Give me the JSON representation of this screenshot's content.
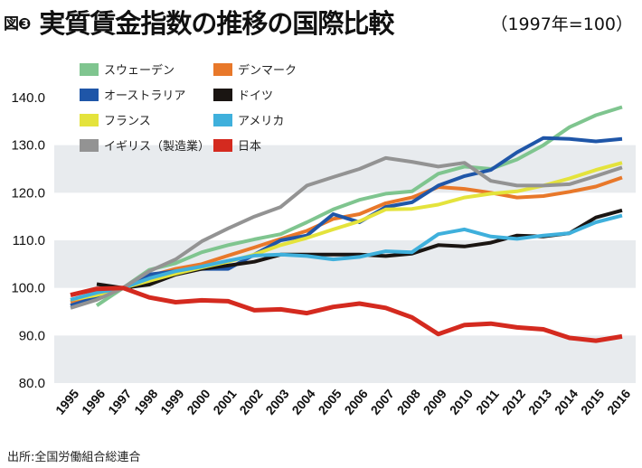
{
  "figure_label": "図❸",
  "title": "実質賃金指数の推移の国際比較",
  "subtitle": "（1997年=100）",
  "source": "出所:全国労働組合総連合",
  "chart_data": {
    "type": "line",
    "title": "実質賃金指数の推移の国際比較",
    "subtitle": "（1997年=100）",
    "xlabel": "",
    "ylabel": "",
    "ylim": [
      80,
      140
    ],
    "yticks": [
      "80.0",
      "90.0",
      "100.0",
      "110.0",
      "120.0",
      "130.0",
      "140.0"
    ],
    "ytick_values": [
      80,
      90,
      100,
      110,
      120,
      130,
      140
    ],
    "grid": "alternating horizontal bands",
    "legend_position": "top-left",
    "x": [
      "1995",
      "1996",
      "1997",
      "1998",
      "1999",
      "2000",
      "2001",
      "2002",
      "2003",
      "2004",
      "2005",
      "2006",
      "2007",
      "2008",
      "2009",
      "2010",
      "2011",
      "2012",
      "2013",
      "2014",
      "2015",
      "2016"
    ],
    "series": [
      {
        "name": "スウェーデン",
        "color": "#7fc58f",
        "values": [
          null,
          96.3,
          100,
          103.8,
          105.2,
          107.5,
          109.0,
          110.2,
          111.3,
          113.8,
          116.5,
          118.5,
          119.8,
          120.3,
          124.0,
          125.5,
          125.0,
          127.0,
          130.0,
          133.8,
          136.3,
          138.0
        ]
      },
      {
        "name": "デンマーク",
        "color": "#e8782a",
        "values": [
          97.0,
          98.3,
          100,
          102.5,
          104.0,
          105.0,
          106.8,
          108.5,
          110.3,
          112.0,
          114.5,
          115.5,
          117.8,
          119.0,
          121.2,
          120.8,
          120.0,
          119.0,
          119.3,
          120.2,
          121.3,
          123.2
        ]
      },
      {
        "name": "オーストラリア",
        "color": "#1f56a8",
        "values": [
          96.3,
          98.0,
          100,
          102.8,
          103.5,
          104.0,
          104.0,
          107.0,
          110.0,
          111.0,
          115.5,
          113.8,
          117.0,
          118.0,
          121.5,
          123.5,
          124.8,
          128.5,
          131.5,
          131.3,
          130.8,
          131.3
        ]
      },
      {
        "name": "ドイツ",
        "color": "#1a1512",
        "values": [
          null,
          100.8,
          100,
          100.7,
          102.8,
          104.0,
          104.7,
          105.5,
          107.0,
          107.0,
          107.0,
          107.0,
          106.7,
          107.2,
          109.0,
          108.7,
          109.5,
          111.0,
          110.8,
          111.5,
          114.8,
          116.3
        ]
      },
      {
        "name": "フランス",
        "color": "#e4e33c",
        "values": [
          97.5,
          98.5,
          100,
          101.5,
          103.0,
          104.3,
          105.5,
          107.0,
          109.0,
          110.5,
          112.3,
          114.0,
          116.5,
          116.6,
          117.5,
          119.0,
          119.8,
          120.3,
          121.5,
          123.0,
          124.8,
          126.3
        ]
      },
      {
        "name": "アメリカ",
        "color": "#3fb0dc",
        "values": [
          97.5,
          99.0,
          100,
          102.0,
          103.5,
          104.5,
          105.7,
          106.8,
          107.0,
          106.7,
          106.0,
          106.5,
          107.7,
          107.5,
          111.3,
          112.3,
          110.8,
          110.3,
          111.0,
          111.5,
          113.8,
          115.2
        ]
      },
      {
        "name": "イギリス（製造業）",
        "color": "#939393",
        "values": [
          95.8,
          97.5,
          100,
          103.5,
          106.0,
          109.8,
          112.5,
          115.0,
          117.0,
          121.5,
          123.3,
          125.0,
          127.3,
          126.5,
          125.5,
          126.3,
          122.5,
          121.5,
          121.5,
          121.8,
          123.5,
          125.3
        ]
      },
      {
        "name": "日本",
        "color": "#d42a1f",
        "values": [
          98.5,
          99.8,
          100,
          98.0,
          97.0,
          97.4,
          97.2,
          95.3,
          95.5,
          94.7,
          96.0,
          96.7,
          95.8,
          93.8,
          90.3,
          92.2,
          92.5,
          91.7,
          91.3,
          89.5,
          88.9,
          89.8
        ]
      }
    ]
  }
}
